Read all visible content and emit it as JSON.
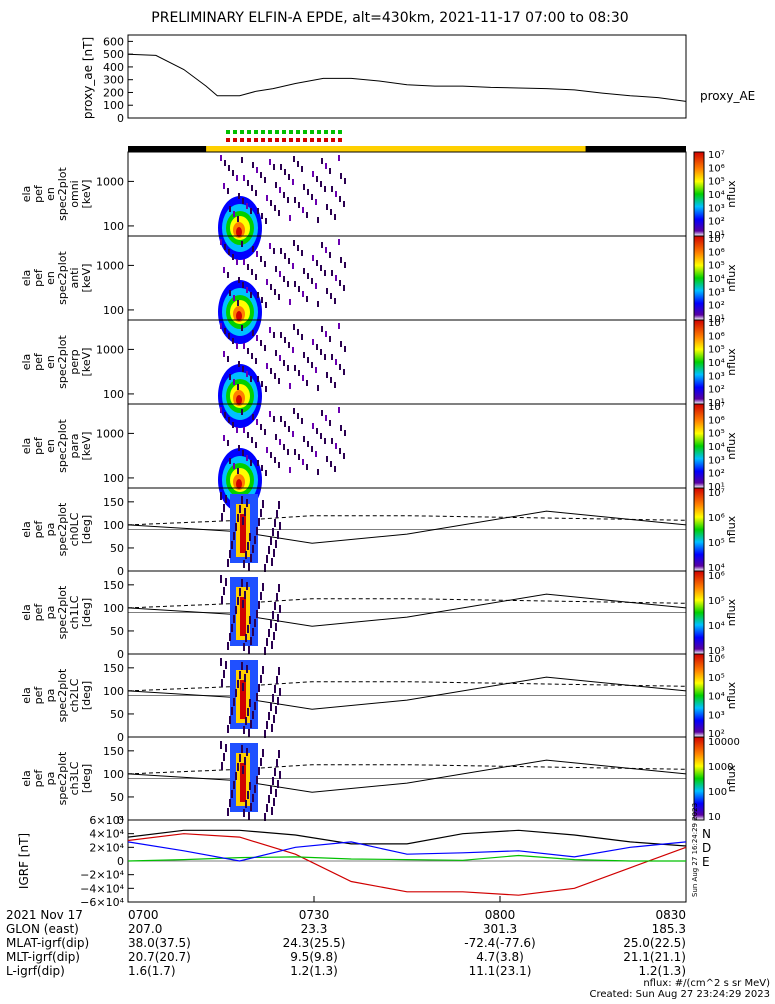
{
  "title": "PRELIMINARY ELFIN-A EPDE, alt=430km, 2021-11-17 07:00 to 08:30",
  "colors": {
    "black": "#000000",
    "yellow": "#ffd000",
    "green": "#00c000",
    "red": "#d00000",
    "blue": "#0000ff",
    "purple": "#cc00cc"
  },
  "chart_data": [
    {
      "type": "line",
      "panel": "proxy_ae",
      "ylabel": "proxy_ae [nT]",
      "yticks": [
        "0",
        "100",
        "200",
        "300",
        "400",
        "500",
        "600"
      ],
      "ylim": [
        0,
        650
      ],
      "right_label": "proxy_AE",
      "x": [
        0.0,
        0.05,
        0.1,
        0.14,
        0.16,
        0.2,
        0.23,
        0.26,
        0.3,
        0.35,
        0.4,
        0.45,
        0.5,
        0.55,
        0.6,
        0.65,
        0.7,
        0.75,
        0.8,
        0.85,
        0.9,
        0.95,
        1.0
      ],
      "values": [
        500,
        490,
        380,
        250,
        175,
        175,
        210,
        230,
        270,
        310,
        310,
        290,
        260,
        250,
        250,
        240,
        235,
        230,
        220,
        195,
        175,
        160,
        130
      ]
    },
    {
      "type": "heatmap",
      "panels": [
        {
          "labels": [
            "ela",
            "pef",
            "en",
            "spec2plot",
            "omni",
            "[keV]"
          ],
          "yticks": [
            "100",
            "1000"
          ]
        },
        {
          "labels": [
            "ela",
            "pef",
            "en",
            "spec2plot",
            "anti",
            "[keV]"
          ],
          "yticks": [
            "100",
            "1000"
          ]
        },
        {
          "labels": [
            "ela",
            "pef",
            "en",
            "spec2plot",
            "perp",
            "[keV]"
          ],
          "yticks": [
            "100",
            "1000"
          ]
        },
        {
          "labels": [
            "ela",
            "pef",
            "en",
            "spec2plot",
            "para",
            "[keV]"
          ],
          "yticks": [
            "100",
            "1000"
          ]
        }
      ],
      "colorbar": {
        "label": "nflux",
        "ticks": [
          "10¹",
          "10²",
          "10³",
          "10⁴",
          "10⁵",
          "10⁶",
          "10⁷"
        ]
      }
    },
    {
      "type": "heatmap",
      "panels": [
        {
          "labels": [
            "ela",
            "pef",
            "pa",
            "spec2plot",
            "ch0LC",
            "[deg]"
          ],
          "yticks": [
            "0",
            "50",
            "100",
            "150"
          ],
          "colorbar": {
            "label": "nflux",
            "ticks": [
              "10⁴",
              "10⁵",
              "10⁶",
              "10⁷"
            ]
          }
        },
        {
          "labels": [
            "ela",
            "pef",
            "pa",
            "spec2plot",
            "ch1LC",
            "[deg]"
          ],
          "yticks": [
            "0",
            "50",
            "100",
            "150"
          ],
          "colorbar": {
            "label": "nflux",
            "ticks": [
              "10³",
              "10⁴",
              "10⁵",
              "10⁶"
            ]
          }
        },
        {
          "labels": [
            "ela",
            "pef",
            "pa",
            "spec2plot",
            "ch2LC",
            "[deg]"
          ],
          "yticks": [
            "0",
            "50",
            "100",
            "150"
          ],
          "colorbar": {
            "label": "nflux",
            "ticks": [
              "10²",
              "10³",
              "10⁴",
              "10⁵",
              "10⁶"
            ]
          }
        },
        {
          "labels": [
            "ela",
            "pef",
            "pa",
            "spec2plot",
            "ch3LC",
            "[deg]"
          ],
          "yticks": [
            "0",
            "50",
            "100",
            "150"
          ],
          "colorbar": {
            "label": "nflux",
            "ticks": [
              "10",
              "100",
              "1000",
              "10000"
            ]
          }
        }
      ]
    },
    {
      "type": "line",
      "panel": "igrf",
      "ylabel": "IGRF [nT]",
      "yticks": [
        "−6×10⁴",
        "−4×10⁴",
        "−2×10⁴",
        "0",
        "2×10⁴",
        "4×10⁴",
        "6×10⁴"
      ],
      "ylim": [
        -60000,
        60000
      ],
      "legend": [
        "N",
        "D",
        "E"
      ],
      "series": [
        {
          "name": "N",
          "color": "#000000",
          "x": [
            0,
            0.1,
            0.2,
            0.3,
            0.4,
            0.5,
            0.6,
            0.7,
            0.8,
            0.9,
            1.0
          ],
          "values": [
            35000,
            45000,
            45000,
            38000,
            25000,
            25000,
            40000,
            45000,
            38000,
            28000,
            22000
          ]
        },
        {
          "name": "D",
          "color": "#d00000",
          "x": [
            0,
            0.1,
            0.2,
            0.3,
            0.4,
            0.5,
            0.6,
            0.7,
            0.8,
            0.9,
            1.0
          ],
          "values": [
            30000,
            40000,
            35000,
            10000,
            -30000,
            -45000,
            -45000,
            -50000,
            -40000,
            -10000,
            20000
          ]
        },
        {
          "name": "E",
          "color": "#00c000",
          "x": [
            0,
            0.1,
            0.2,
            0.3,
            0.4,
            0.5,
            0.6,
            0.7,
            0.8,
            0.9,
            1.0
          ],
          "values": [
            0,
            2000,
            5000,
            6000,
            3000,
            2000,
            1000,
            8000,
            2000,
            0,
            0
          ]
        },
        {
          "name": "",
          "color": "#0000ff",
          "x": [
            0,
            0.1,
            0.2,
            0.3,
            0.4,
            0.5,
            0.6,
            0.7,
            0.8,
            0.9,
            1.0
          ],
          "values": [
            28000,
            15000,
            0,
            20000,
            28000,
            10000,
            12000,
            15000,
            6000,
            20000,
            28000
          ]
        }
      ]
    }
  ],
  "xaxis": {
    "ticks": [
      "0700",
      "0730",
      "0800",
      "0830"
    ],
    "rows": [
      {
        "label": "2021 Nov 17",
        "values": [
          "0700",
          "0730",
          "0800",
          "0830"
        ]
      },
      {
        "label": "GLON (east)",
        "values": [
          "207.0",
          "23.3",
          "301.3",
          "185.3"
        ]
      },
      {
        "label": "MLAT-igrf(dip)",
        "values": [
          "38.0(37.5)",
          "24.3(25.5)",
          "-72.4(-77.6)",
          "25.0(22.5)"
        ]
      },
      {
        "label": "MLT-igrf(dip)",
        "values": [
          "20.7(20.7)",
          "9.5(9.8)",
          "4.7(3.8)",
          "21.1(21.1)"
        ]
      },
      {
        "label": "L-igrf(dip)",
        "values": [
          "1.6(1.7)",
          "1.2(1.3)",
          "11.1(23.1)",
          "1.2(1.3)"
        ]
      }
    ]
  },
  "footer": {
    "units": "nflux: #/(cm^2 s sr MeV)",
    "created": "Created: Sun Aug 27 23:24:29 2023",
    "side_stamp": "Sun Aug 27 16:24:29 2023"
  }
}
